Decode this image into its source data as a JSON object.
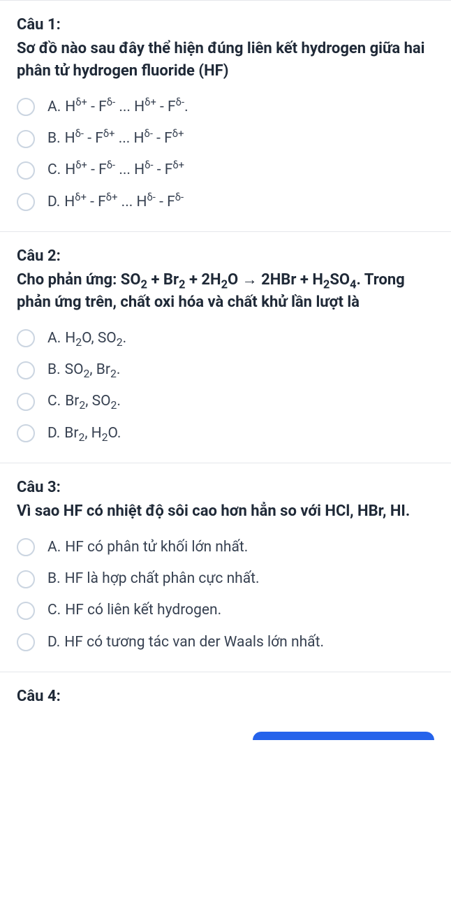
{
  "questions": [
    {
      "number": "Câu 1:",
      "text_html": "Sơ đồ nào sau đây thể hiện đúng liên kết hydrogen giữa hai phân tử hydrogen fluoride (HF)",
      "choices": [
        {
          "letter": "A.",
          "html": "H<sup>δ+</sup> - F<sup>δ-</sup> ... H<sup>δ+</sup> - F<sup>δ-</sup>."
        },
        {
          "letter": "B.",
          "html": "H<sup>δ-</sup> - F<sup>δ+</sup> ... H<sup>δ-</sup> - F<sup>δ+</sup>"
        },
        {
          "letter": "C.",
          "html": "H<sup>δ+</sup> - F<sup>δ-</sup> ... H<sup>δ-</sup> - F<sup>δ+</sup>"
        },
        {
          "letter": "D.",
          "html": "H<sup>δ+</sup> - F<sup>δ+</sup> ... H<sup>δ-</sup> - F<sup>δ-</sup>"
        }
      ]
    },
    {
      "number": "Câu 2:",
      "text_html": "Cho phản ứng: SO<sub>2</sub> + Br<sub>2</sub> + 2H<sub>2</sub>O → 2HBr + H<sub>2</sub>SO<sub>4</sub>. Trong phản ứng trên, chất oxi hóa và chất khử lần lượt là",
      "choices": [
        {
          "letter": "A.",
          "html": "H<sub>2</sub>O, SO<sub>2</sub>."
        },
        {
          "letter": "B.",
          "html": "SO<sub>2</sub>, Br<sub>2</sub>."
        },
        {
          "letter": "C.",
          "html": "Br<sub>2</sub>, SO<sub>2</sub>."
        },
        {
          "letter": "D.",
          "html": "Br<sub>2</sub>, H<sub>2</sub>O."
        }
      ]
    },
    {
      "number": "Câu 3:",
      "text_html": "Vì sao HF có nhiệt độ sôi cao hơn hẳn so với HCl, HBr, HI.",
      "choices": [
        {
          "letter": "A.",
          "html": "HF có phân tử khối lớn nhất."
        },
        {
          "letter": "B.",
          "html": "HF là hợp chất phân cực nhất."
        },
        {
          "letter": "C.",
          "html": "HF có liên kết hydrogen."
        },
        {
          "letter": "D.",
          "html": "HF có tương tác van der Waals lớn nhất."
        }
      ]
    },
    {
      "number": "Câu 4:",
      "text_html": "",
      "choices": []
    }
  ],
  "colors": {
    "text": "#1f2937",
    "border": "#e5e7eb",
    "radio_border": "#cbd5e1",
    "background": "#ffffff",
    "page_bg": "#f0f0f0",
    "accent": "#2563eb"
  }
}
